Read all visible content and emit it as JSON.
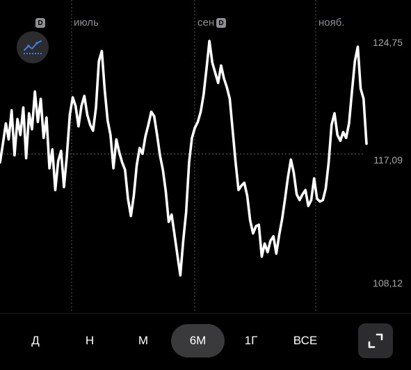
{
  "badges": {
    "dividend": "D"
  },
  "months": [
    "июль",
    "сен",
    "нояб."
  ],
  "price_levels": {
    "high": "124,75",
    "mid": "117,09",
    "low": "108,12"
  },
  "periods": [
    "Д",
    "Н",
    "М",
    "6М",
    "1Г",
    "ВСЕ"
  ],
  "selected_period": "6М",
  "icons": {
    "mode": "line-chart-icon",
    "expand": "expand-fullscreen-icon"
  },
  "colors": {
    "line": "#ffffff",
    "background": "#000000",
    "chart_icon": "#3d7fe6"
  },
  "chart_data": {
    "type": "line",
    "ylim": [
      108.12,
      124.75
    ],
    "y_ticks": [
      124.75,
      117.09,
      108.12
    ],
    "series": [
      {
        "values": [
          116.5,
          117.8,
          119.2,
          118.1,
          120.1,
          117.0,
          119.5,
          118.4,
          120.3,
          116.8,
          119.9,
          118.8,
          121.4,
          119.3,
          120.9,
          118.2,
          119.6,
          116.1,
          117.4,
          114.6,
          116.6,
          117.3,
          114.8,
          117.0,
          119.8,
          121.0,
          120.4,
          119.0,
          120.4,
          121.1,
          119.8,
          119.1,
          118.7,
          120.3,
          123.5,
          124.2,
          121.5,
          119.4,
          118.4,
          116.1,
          118.1,
          117.2,
          116.5,
          116.0,
          114.0,
          112.8,
          114.2,
          116.3,
          117.5,
          117.1,
          118.3,
          119.1,
          120.0,
          119.7,
          118.4,
          117.0,
          116.0,
          114.5,
          112.4,
          112.9,
          111.5,
          110.1,
          108.7,
          111.1,
          113.1,
          116.5,
          118.2,
          118.9,
          119.3,
          120.0,
          121.2,
          123.0,
          124.9,
          123.4,
          122.7,
          122.0,
          123.2,
          122.3,
          121.7,
          120.9,
          118.7,
          116.5,
          114.6,
          114.9,
          115.1,
          114.2,
          112.5,
          111.6,
          112.1,
          112.2,
          110.0,
          110.9,
          110.3,
          111.1,
          111.4,
          110.2,
          111.5,
          112.6,
          114.0,
          115.5,
          116.7,
          115.8,
          114.3,
          113.9,
          114.3,
          114.6,
          113.5,
          113.9,
          115.4,
          114.0,
          113.8,
          113.9,
          114.7,
          116.5,
          119.1,
          119.9,
          118.4,
          118.0,
          118.6,
          118.2,
          119.2,
          121.4,
          123.5,
          124.5,
          121.6,
          120.9,
          117.8
        ]
      }
    ]
  }
}
